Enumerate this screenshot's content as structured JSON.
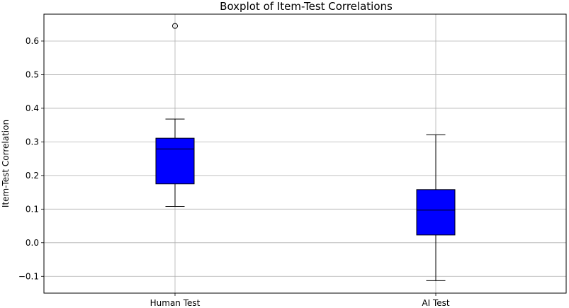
{
  "chart_data": {
    "type": "boxplot",
    "title": "Boxplot of Item-Test Correlations",
    "xlabel": "",
    "ylabel": "Item-Test Correlation",
    "ylim": [
      -0.15,
      0.68
    ],
    "yticks": [
      -0.1,
      0.0,
      0.1,
      0.2,
      0.3,
      0.4,
      0.5,
      0.6
    ],
    "ytick_labels": [
      "−0.1",
      "0.0",
      "0.1",
      "0.2",
      "0.3",
      "0.4",
      "0.5",
      "0.6"
    ],
    "grid": true,
    "box_color": "#0000ff",
    "categories": [
      "Human Test",
      "AI Test"
    ],
    "boxes": [
      {
        "category": "Human Test",
        "whisker_low": 0.108,
        "q1": 0.175,
        "median": 0.279,
        "q3": 0.311,
        "whisker_high": 0.368,
        "outliers": [
          0.645
        ]
      },
      {
        "category": "AI Test",
        "whisker_low": -0.113,
        "q1": 0.023,
        "median": 0.097,
        "q3": 0.158,
        "whisker_high": 0.321,
        "outliers": []
      }
    ]
  }
}
